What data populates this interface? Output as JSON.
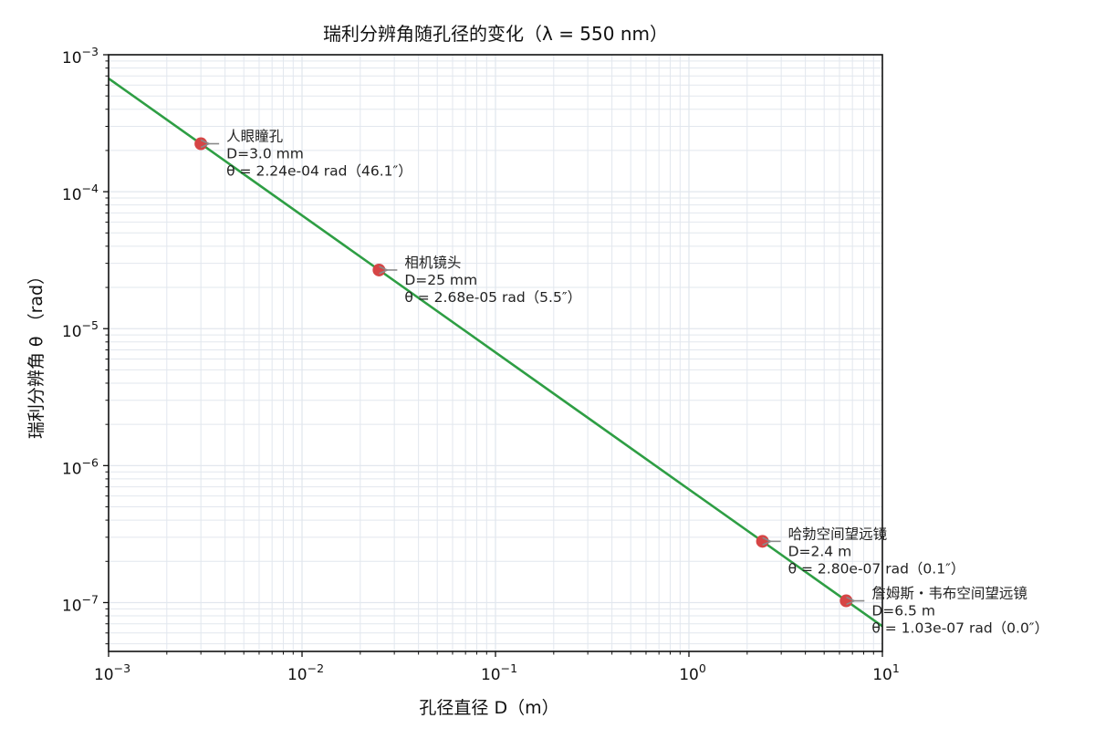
{
  "chart_data": {
    "type": "line",
    "title": "瑞利分辨角随孔径的变化（λ = 550 nm）",
    "xlabel": "孔径直径 D（m）",
    "ylabel": "瑞利分辨角 θ （rad）",
    "xscale": "log",
    "yscale": "log",
    "xlim": [
      0.001,
      10
    ],
    "ylim": [
      4.4e-08,
      0.001
    ],
    "grid": true,
    "legend": "none",
    "x_ticks": [
      {
        "value": 0.001,
        "base": "10",
        "exp": "−3"
      },
      {
        "value": 0.01,
        "base": "10",
        "exp": "−2"
      },
      {
        "value": 0.1,
        "base": "10",
        "exp": "−1"
      },
      {
        "value": 1,
        "base": "10",
        "exp": "0"
      },
      {
        "value": 10,
        "base": "10",
        "exp": "1"
      }
    ],
    "y_ticks": [
      {
        "value": 1e-07,
        "base": "10",
        "exp": "−7"
      },
      {
        "value": 1e-06,
        "base": "10",
        "exp": "−6"
      },
      {
        "value": 1e-05,
        "base": "10",
        "exp": "−5"
      },
      {
        "value": 0.0001,
        "base": "10",
        "exp": "−4"
      },
      {
        "value": 0.001,
        "base": "10",
        "exp": "−3"
      }
    ],
    "series": [
      {
        "x": [
          0.001,
          10
        ],
        "y": [
          0.000671,
          6.71e-08
        ]
      }
    ],
    "points": [
      {
        "x": 0.003,
        "y": 0.000224,
        "lines": [
          "人眼瞳孔",
          "D=3.0 mm",
          "θ = 2.24e-04 rad（46.1″）"
        ]
      },
      {
        "x": 0.025,
        "y": 2.68e-05,
        "lines": [
          "相机镜头",
          "D=25 mm",
          "θ = 2.68e-05 rad（5.5″）"
        ]
      },
      {
        "x": 2.4,
        "y": 2.8e-07,
        "lines": [
          "哈勃空间望远镜",
          "D=2.4 m",
          "θ = 2.80e-07 rad（0.1″）"
        ]
      },
      {
        "x": 6.5,
        "y": 1.03e-07,
        "lines": [
          "詹姆斯・韦布空间望远镜",
          "D=6.5 m",
          "θ = 1.03e-07 rad（0.0″）"
        ]
      }
    ],
    "colors": {
      "line": "#2e9e44",
      "marker": "#d64545",
      "arrow": "#8a8a8a",
      "grid": "#e2e7ee"
    }
  }
}
